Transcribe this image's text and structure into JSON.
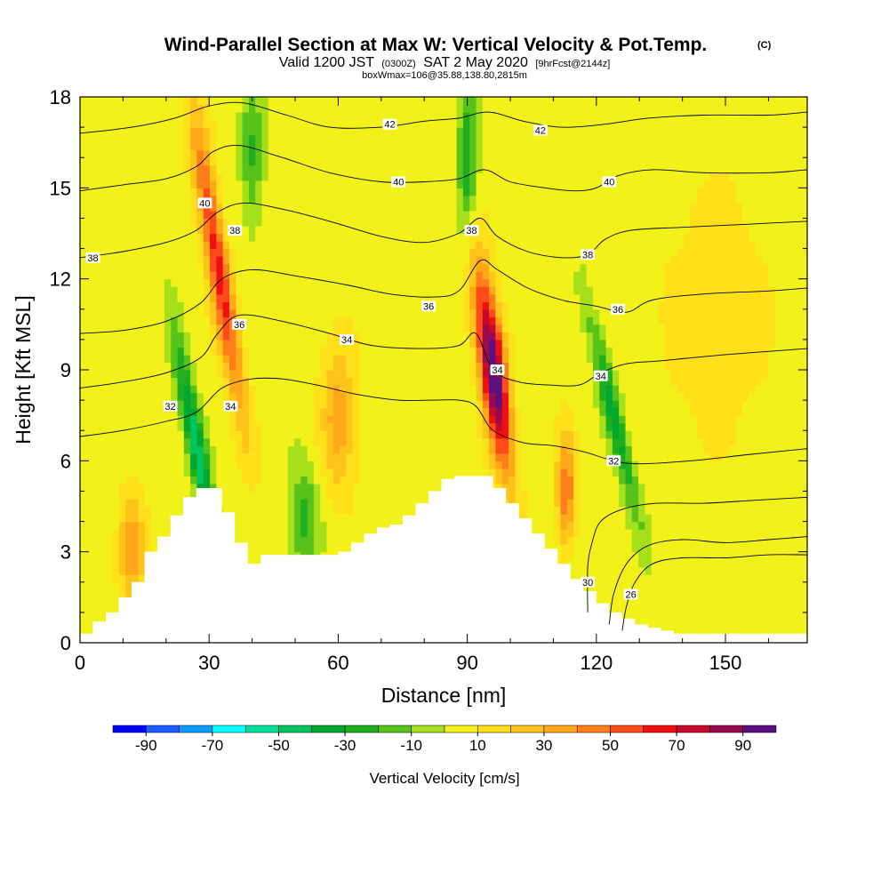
{
  "header": {
    "title_main": "Wind-Parallel Section at Max W: Vertical Velocity & Pot.Temp.",
    "title_mark": "(C)",
    "valid_prefix": "Valid 1200 JST",
    "valid_utc": "(0300Z)",
    "valid_date": "SAT 2 May 2020",
    "forecast_info": "[9hrFcst@2144z]",
    "box_info": "boxWmax=106@35.88,138.80,2815m"
  },
  "chart_data": {
    "type": "heatmap",
    "xlabel": "Distance [nm]",
    "ylabel": "Height [Kft MSL]",
    "xlim": [
      0,
      169
    ],
    "ylim": [
      0,
      18
    ],
    "x_ticks": [
      0,
      30,
      60,
      90,
      120,
      150
    ],
    "y_ticks": [
      0,
      3,
      6,
      9,
      12,
      15,
      18
    ],
    "x_tick_labels": [
      "0",
      "30",
      "60",
      "90",
      "120",
      "150"
    ],
    "y_tick_labels": [
      "0",
      "3",
      "6",
      "9",
      "12",
      "15",
      "18"
    ],
    "colorbar": {
      "title": "Vertical Velocity [cm/s]",
      "bins": [
        -100,
        -90,
        -80,
        -70,
        -60,
        -50,
        -40,
        -30,
        -20,
        -10,
        0,
        10,
        20,
        30,
        40,
        50,
        60,
        70,
        80,
        90,
        100
      ],
      "colors": [
        "#0000ff",
        "#1e5cff",
        "#0d9bff",
        "#00ffff",
        "#00e09a",
        "#00c45c",
        "#00a830",
        "#1fae1f",
        "#56c21a",
        "#a6e01a",
        "#f2f21a",
        "#ffe01a",
        "#ffc41a",
        "#ffa81a",
        "#ff7e1a",
        "#ff4a1a",
        "#f01010",
        "#c80a2a",
        "#9a0a50",
        "#5a1080"
      ],
      "tick_values": [
        -90,
        -70,
        -50,
        -30,
        -10,
        10,
        30,
        50,
        70,
        90
      ],
      "tick_labels": [
        "-90",
        "-70",
        "-50",
        "-30",
        "-10",
        "10",
        "30",
        "50",
        "70",
        "90"
      ]
    },
    "terrain": {
      "distance_nm": [
        0,
        3,
        6,
        9,
        12,
        15,
        18,
        21,
        24,
        27,
        30,
        33,
        36,
        39,
        42,
        45,
        48,
        51,
        54,
        57,
        60,
        63,
        66,
        69,
        72,
        75,
        78,
        81,
        84,
        87,
        90,
        93,
        96,
        99,
        102,
        105,
        108,
        111,
        114,
        117,
        120,
        123,
        126,
        129,
        132,
        135,
        138,
        141,
        144,
        147,
        150,
        153,
        156,
        159,
        162,
        165,
        168
      ],
      "height_kft": [
        0.3,
        0.7,
        1.0,
        1.5,
        2.0,
        3.0,
        3.5,
        4.2,
        4.8,
        5.1,
        5.1,
        4.3,
        3.3,
        2.6,
        2.9,
        2.9,
        2.9,
        2.9,
        2.9,
        2.9,
        3.0,
        3.3,
        3.6,
        3.8,
        3.9,
        4.2,
        4.6,
        5.0,
        5.4,
        5.5,
        5.5,
        5.5,
        5.1,
        4.6,
        4.1,
        3.6,
        3.1,
        2.6,
        2.1,
        1.7,
        1.3,
        1.0,
        0.8,
        0.6,
        0.5,
        0.4,
        0.3,
        0.3,
        0.3,
        0.3,
        0.3,
        0.3,
        0.3,
        0.3,
        0.3,
        0.3,
        0.3
      ]
    },
    "vertical_velocity_features": [
      {
        "kind": "updraft",
        "x_nm": 96,
        "z_kft": 9.0,
        "peak_cm_s": 100,
        "x_halfwidth_nm": 3.0,
        "z_halfwidth_kft": 3.2,
        "tilt_nm_per_kft": -0.9
      },
      {
        "kind": "updraft",
        "x_nm": 32,
        "z_kft": 12.5,
        "peak_cm_s": 60,
        "x_halfwidth_nm": 2.6,
        "z_halfwidth_kft": 5.0,
        "tilt_nm_per_kft": -1.1
      },
      {
        "kind": "updraft",
        "x_nm": 113,
        "z_kft": 5.0,
        "peak_cm_s": 45,
        "x_halfwidth_nm": 2.2,
        "z_halfwidth_kft": 1.8,
        "tilt_nm_per_kft": 0.0
      },
      {
        "kind": "updraft",
        "x_nm": 60,
        "z_kft": 7.5,
        "peak_cm_s": 28,
        "x_halfwidth_nm": 4.0,
        "z_halfwidth_kft": 2.8,
        "tilt_nm_per_kft": 0.0
      },
      {
        "kind": "updraft",
        "x_nm": 12,
        "z_kft": 3.0,
        "peak_cm_s": 30,
        "x_halfwidth_nm": 3.0,
        "z_halfwidth_kft": 2.0,
        "tilt_nm_per_kft": 0.0
      },
      {
        "kind": "updraft",
        "x_nm": 148,
        "z_kft": 11.0,
        "peak_cm_s": 15,
        "x_halfwidth_nm": 12.0,
        "z_halfwidth_kft": 4.0,
        "tilt_nm_per_kft": 0.0
      },
      {
        "kind": "downdraft",
        "x_nm": 27,
        "z_kft": 6.5,
        "peak_cm_s": -55,
        "x_halfwidth_nm": 2.2,
        "z_halfwidth_kft": 3.5,
        "tilt_nm_per_kft": -1.3
      },
      {
        "kind": "downdraft",
        "x_nm": 124,
        "z_kft": 7.5,
        "peak_cm_s": -40,
        "x_halfwidth_nm": 2.2,
        "z_halfwidth_kft": 3.5,
        "tilt_nm_per_kft": -1.6
      },
      {
        "kind": "downdraft",
        "x_nm": 90,
        "z_kft": 16.0,
        "peak_cm_s": -35,
        "x_halfwidth_nm": 2.2,
        "z_halfwidth_kft": 2.5,
        "tilt_nm_per_kft": 0.0
      },
      {
        "kind": "downdraft",
        "x_nm": 52,
        "z_kft": 4.0,
        "peak_cm_s": -30,
        "x_halfwidth_nm": 3.5,
        "z_halfwidth_kft": 1.8,
        "tilt_nm_per_kft": 0.0
      },
      {
        "kind": "downdraft",
        "x_nm": 40,
        "z_kft": 16.0,
        "peak_cm_s": -25,
        "x_halfwidth_nm": 2.5,
        "z_halfwidth_kft": 2.5,
        "tilt_nm_per_kft": 0.0
      }
    ],
    "potential_temperature_contours": [
      {
        "level": 26,
        "points": [
          [
            126,
            0.4
          ],
          [
            127,
            1.2
          ],
          [
            129,
            2.0
          ],
          [
            133,
            2.6
          ],
          [
            140,
            2.8
          ],
          [
            150,
            2.8
          ],
          [
            160,
            2.9
          ],
          [
            169,
            2.9
          ]
        ]
      },
      {
        "level": 28,
        "points": [
          [
            123,
            0.6
          ],
          [
            124,
            1.6
          ],
          [
            127,
            2.6
          ],
          [
            132,
            3.2
          ],
          [
            140,
            3.4
          ],
          [
            150,
            3.3
          ],
          [
            160,
            3.4
          ],
          [
            169,
            3.5
          ]
        ]
      },
      {
        "level": 30,
        "points": [
          [
            118,
            1.0
          ],
          [
            118,
            2.5
          ],
          [
            119,
            3.3
          ],
          [
            121,
            4.0
          ],
          [
            126,
            4.4
          ],
          [
            134,
            4.6
          ],
          [
            145,
            4.6
          ],
          [
            157,
            4.7
          ],
          [
            169,
            4.8
          ]
        ]
      },
      {
        "level": 32,
        "points": [
          [
            0,
            6.8
          ],
          [
            10,
            7.0
          ],
          [
            20,
            7.3
          ],
          [
            27,
            7.6
          ],
          [
            33,
            8.4
          ],
          [
            40,
            8.7
          ],
          [
            47,
            8.7
          ],
          [
            55,
            8.5
          ],
          [
            64,
            8.2
          ],
          [
            74,
            8.0
          ],
          [
            82,
            8.0
          ],
          [
            88,
            8.0
          ],
          [
            92,
            7.8
          ],
          [
            96,
            7.0
          ],
          [
            103,
            6.6
          ],
          [
            110,
            6.5
          ],
          [
            117,
            6.3
          ],
          [
            124,
            6.0
          ],
          [
            130,
            5.9
          ],
          [
            142,
            6.0
          ],
          [
            155,
            6.2
          ],
          [
            169,
            6.4
          ]
        ]
      },
      {
        "level": 34,
        "points": [
          [
            0,
            8.4
          ],
          [
            10,
            8.6
          ],
          [
            20,
            8.9
          ],
          [
            28,
            9.4
          ],
          [
            32,
            10.2
          ],
          [
            37,
            10.8
          ],
          [
            47,
            10.6
          ],
          [
            58,
            10.2
          ],
          [
            68,
            9.8
          ],
          [
            80,
            9.7
          ],
          [
            88,
            9.8
          ],
          [
            92,
            10.2
          ],
          [
            96,
            9.0
          ],
          [
            102,
            8.6
          ],
          [
            109,
            8.5
          ],
          [
            116,
            8.5
          ],
          [
            121,
            8.9
          ],
          [
            127,
            9.2
          ],
          [
            135,
            9.3
          ],
          [
            150,
            9.5
          ],
          [
            169,
            9.7
          ]
        ]
      },
      {
        "level": 36,
        "points": [
          [
            0,
            10.2
          ],
          [
            10,
            10.3
          ],
          [
            20,
            10.6
          ],
          [
            28,
            11.2
          ],
          [
            33,
            12.0
          ],
          [
            40,
            12.3
          ],
          [
            50,
            12.1
          ],
          [
            62,
            11.8
          ],
          [
            72,
            11.5
          ],
          [
            82,
            11.4
          ],
          [
            88,
            11.6
          ],
          [
            93,
            12.6
          ],
          [
            97,
            12.3
          ],
          [
            104,
            11.7
          ],
          [
            112,
            11.3
          ],
          [
            120,
            11.1
          ],
          [
            127,
            10.9
          ],
          [
            133,
            11.3
          ],
          [
            145,
            11.5
          ],
          [
            160,
            11.6
          ],
          [
            169,
            11.7
          ]
        ]
      },
      {
        "level": 38,
        "points": [
          [
            0,
            12.7
          ],
          [
            10,
            12.9
          ],
          [
            20,
            13.2
          ],
          [
            27,
            13.6
          ],
          [
            32,
            14.2
          ],
          [
            38,
            14.5
          ],
          [
            47,
            14.3
          ],
          [
            58,
            13.9
          ],
          [
            70,
            13.4
          ],
          [
            80,
            13.2
          ],
          [
            88,
            13.5
          ],
          [
            93,
            14.0
          ],
          [
            97,
            13.4
          ],
          [
            104,
            12.9
          ],
          [
            112,
            12.7
          ],
          [
            118,
            12.8
          ],
          [
            122,
            13.3
          ],
          [
            128,
            13.6
          ],
          [
            140,
            13.7
          ],
          [
            155,
            13.8
          ],
          [
            169,
            13.9
          ]
        ]
      },
      {
        "level": 40,
        "points": [
          [
            0,
            14.9
          ],
          [
            10,
            15.1
          ],
          [
            20,
            15.3
          ],
          [
            27,
            15.7
          ],
          [
            31,
            16.2
          ],
          [
            37,
            16.4
          ],
          [
            47,
            16.0
          ],
          [
            58,
            15.5
          ],
          [
            70,
            15.2
          ],
          [
            80,
            15.2
          ],
          [
            88,
            15.3
          ],
          [
            94,
            15.6
          ],
          [
            100,
            15.2
          ],
          [
            108,
            15.0
          ],
          [
            115,
            14.9
          ],
          [
            120,
            15.0
          ],
          [
            125,
            15.4
          ],
          [
            133,
            15.6
          ],
          [
            145,
            15.5
          ],
          [
            160,
            15.5
          ],
          [
            169,
            15.6
          ]
        ]
      },
      {
        "level": 42,
        "points": [
          [
            0,
            16.8
          ],
          [
            12,
            17.0
          ],
          [
            22,
            17.3
          ],
          [
            30,
            17.7
          ],
          [
            38,
            17.8
          ],
          [
            48,
            17.4
          ],
          [
            58,
            17.0
          ],
          [
            70,
            17.0
          ],
          [
            80,
            17.2
          ],
          [
            88,
            17.3
          ],
          [
            95,
            17.5
          ],
          [
            103,
            17.2
          ],
          [
            112,
            17.0
          ],
          [
            122,
            17.1
          ],
          [
            132,
            17.3
          ],
          [
            145,
            17.4
          ],
          [
            160,
            17.4
          ],
          [
            169,
            17.5
          ]
        ]
      }
    ],
    "contour_labels": [
      {
        "text": "42",
        "x": 72,
        "z": 17.1
      },
      {
        "text": "42",
        "x": 107,
        "z": 16.9
      },
      {
        "text": "40",
        "x": 29,
        "z": 14.5
      },
      {
        "text": "40",
        "x": 74,
        "z": 15.2
      },
      {
        "text": "40",
        "x": 123,
        "z": 15.2
      },
      {
        "text": "38",
        "x": 3,
        "z": 12.7
      },
      {
        "text": "38",
        "x": 36,
        "z": 13.6
      },
      {
        "text": "38",
        "x": 91,
        "z": 13.6
      },
      {
        "text": "38",
        "x": 118,
        "z": 12.8
      },
      {
        "text": "36",
        "x": 37,
        "z": 10.5
      },
      {
        "text": "36",
        "x": 81,
        "z": 11.1
      },
      {
        "text": "36",
        "x": 125,
        "z": 11.0
      },
      {
        "text": "34",
        "x": 62,
        "z": 10.0
      },
      {
        "text": "34",
        "x": 97,
        "z": 9.0
      },
      {
        "text": "34",
        "x": 121,
        "z": 8.8
      },
      {
        "text": "32",
        "x": 21,
        "z": 7.8
      },
      {
        "text": "34",
        "x": 35,
        "z": 7.8
      },
      {
        "text": "32",
        "x": 124,
        "z": 6.0
      },
      {
        "text": "30",
        "x": 118,
        "z": 2.0
      },
      {
        "text": "26",
        "x": 128,
        "z": 1.6
      }
    ]
  }
}
